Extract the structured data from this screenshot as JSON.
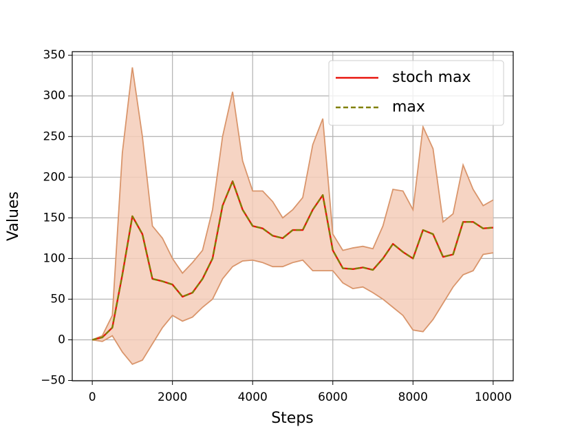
{
  "chart_data": {
    "type": "line",
    "xlabel": "Steps",
    "ylabel": "Values",
    "x": [
      0,
      250,
      500,
      750,
      1000,
      1250,
      1500,
      1750,
      2000,
      2250,
      2500,
      2750,
      3000,
      3250,
      3500,
      3750,
      4000,
      4250,
      4500,
      4750,
      5000,
      5250,
      5500,
      5750,
      6000,
      6250,
      6500,
      6750,
      7000,
      7250,
      7500,
      7750,
      8000,
      8250,
      8500,
      8750,
      9000,
      9250,
      9500,
      9750,
      10000
    ],
    "series": [
      {
        "name": "stoch max",
        "color": "#e8150d",
        "dash": false,
        "values": [
          0,
          3,
          15,
          80,
          152,
          130,
          75,
          72,
          68,
          53,
          58,
          75,
          100,
          165,
          195,
          160,
          140,
          137,
          128,
          125,
          135,
          135,
          160,
          178,
          110,
          88,
          87,
          89,
          86,
          100,
          118,
          108,
          100,
          135,
          130,
          102,
          105,
          145,
          145,
          137,
          138
        ]
      },
      {
        "name": "max",
        "color": "#808000",
        "dash": true,
        "values": [
          0,
          3,
          15,
          80,
          152,
          130,
          75,
          72,
          68,
          53,
          58,
          75,
          100,
          165,
          195,
          160,
          140,
          137,
          128,
          125,
          135,
          135,
          160,
          178,
          110,
          88,
          87,
          89,
          86,
          100,
          118,
          108,
          100,
          135,
          130,
          102,
          105,
          145,
          145,
          137,
          138
        ]
      }
    ],
    "band": {
      "color": "#f4cdb8",
      "edge_color": "#d9956b",
      "upper": [
        0,
        5,
        30,
        230,
        335,
        250,
        140,
        125,
        100,
        82,
        95,
        110,
        160,
        250,
        305,
        220,
        183,
        183,
        170,
        150,
        160,
        175,
        240,
        272,
        130,
        110,
        113,
        115,
        112,
        140,
        185,
        183,
        160,
        262,
        235,
        145,
        155,
        215,
        185,
        165,
        172
      ],
      "lower": [
        0,
        -2,
        5,
        -15,
        -30,
        -25,
        -5,
        15,
        30,
        23,
        28,
        40,
        50,
        75,
        90,
        97,
        98,
        95,
        90,
        90,
        95,
        98,
        85,
        85,
        85,
        70,
        63,
        65,
        58,
        50,
        40,
        30,
        12,
        10,
        25,
        45,
        65,
        80,
        85,
        105,
        107
      ]
    },
    "xlim": [
      -500,
      10500
    ],
    "ylim": [
      -50.4,
      354.4
    ],
    "xticks": [
      0,
      2000,
      4000,
      6000,
      8000,
      10000
    ],
    "yticks": [
      {
        "value": -50,
        "label": "−50"
      },
      0,
      50,
      100,
      150,
      200,
      250,
      300,
      350
    ],
    "grid": true,
    "legend": "upper right"
  }
}
